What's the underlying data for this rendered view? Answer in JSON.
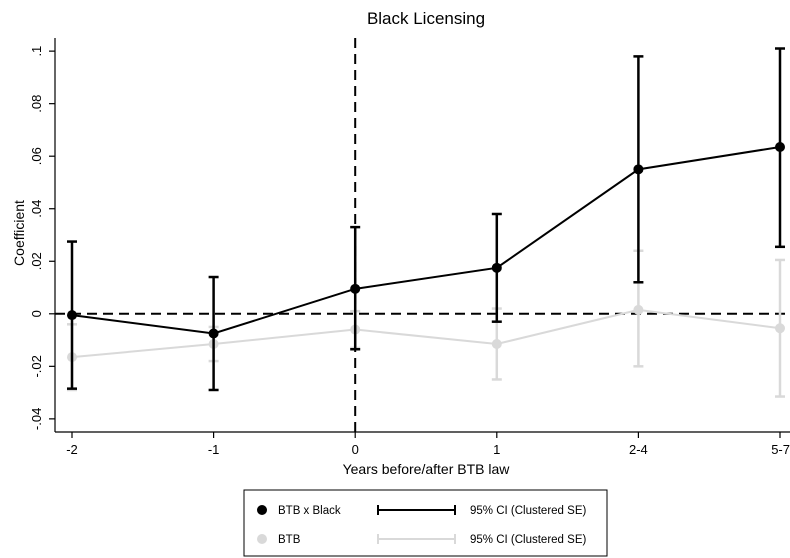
{
  "chart_data": {
    "type": "line",
    "title": "Black Licensing",
    "xlabel": "Years before/after BTB law",
    "ylabel": "Coefficient",
    "categories": [
      "-2",
      "-1",
      "0",
      "1",
      "2-4",
      "5-7"
    ],
    "ylim": [
      -0.045,
      0.105
    ],
    "yticks": [
      -0.04,
      -0.02,
      0,
      0.02,
      0.04,
      0.06,
      0.08,
      0.1
    ],
    "ytick_labels": [
      "-.04",
      "-.02",
      "0",
      ".02",
      ".04",
      ".06",
      ".08",
      ".1"
    ],
    "zero_line": true,
    "event_line_at": "0",
    "legend_position": "bottom",
    "series": [
      {
        "name": "BTB",
        "color": "#d9d9d9",
        "values": [
          -0.0165,
          -0.0115,
          -0.006,
          -0.0115,
          0.0015,
          -0.0055
        ],
        "ci_low": [
          -0.029,
          -0.018,
          -0.013,
          -0.025,
          -0.02,
          -0.0315
        ],
        "ci_high": [
          -0.004,
          -0.005,
          0.001,
          0.002,
          0.024,
          0.0205
        ]
      },
      {
        "name": "BTB x Black",
        "color": "#000000",
        "values": [
          -0.0005,
          -0.0075,
          0.0095,
          0.0175,
          0.055,
          0.0635
        ],
        "ci_low": [
          -0.0285,
          -0.029,
          -0.0135,
          -0.003,
          0.012,
          0.0255
        ],
        "ci_high": [
          0.0275,
          0.014,
          0.033,
          0.038,
          0.098,
          0.101
        ]
      }
    ],
    "legend": [
      {
        "marker_label": "BTB x Black",
        "ci_label": "95% CI (Clustered SE)",
        "color": "#000000"
      },
      {
        "marker_label": "BTB",
        "ci_label": "95% CI (Clustered SE)",
        "color": "#d9d9d9"
      }
    ]
  }
}
